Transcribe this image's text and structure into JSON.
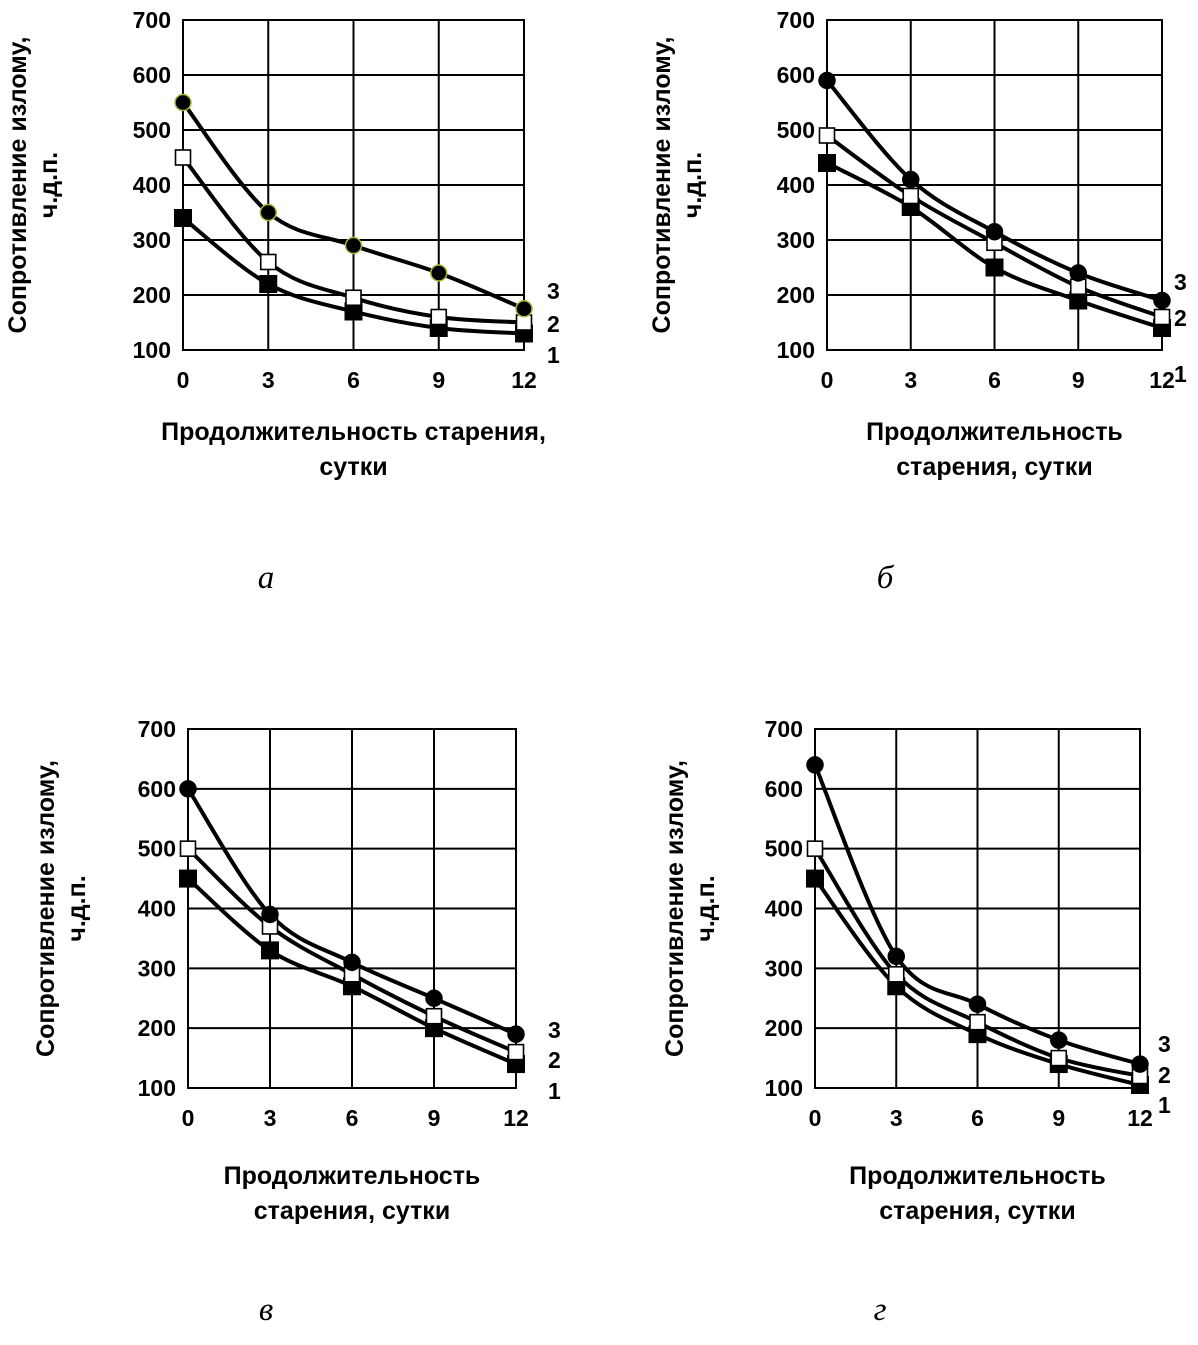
{
  "chart_data": [
    {
      "type": "line",
      "panel_label": "а",
      "xlabel": [
        "Продолжительность старения,",
        "сутки"
      ],
      "ylabel": [
        "Сопротивление излому,",
        "ч.д.п."
      ],
      "x": [
        0,
        3,
        6,
        9,
        12
      ],
      "xlim": [
        0,
        12
      ],
      "ylim": [
        100,
        700
      ],
      "yticks": [
        100,
        200,
        300,
        400,
        500,
        600,
        700
      ],
      "grid": true,
      "series": [
        {
          "name": "1",
          "marker": "filled-square",
          "values": [
            340,
            220,
            170,
            140,
            130
          ]
        },
        {
          "name": "2",
          "marker": "open-square",
          "values": [
            450,
            260,
            195,
            160,
            150
          ]
        },
        {
          "name": "3",
          "marker": "filled-circle",
          "values": [
            550,
            350,
            290,
            240,
            175
          ]
        }
      ]
    },
    {
      "type": "line",
      "panel_label": "б",
      "xlabel": [
        "Продолжительность",
        "старения, сутки"
      ],
      "ylabel": [
        "Сопротивление излому,",
        "ч.д.п."
      ],
      "x": [
        0,
        3,
        6,
        9,
        12
      ],
      "xlim": [
        0,
        12
      ],
      "ylim": [
        100,
        700
      ],
      "yticks": [
        100,
        200,
        300,
        400,
        500,
        600,
        700
      ],
      "grid": true,
      "series": [
        {
          "name": "1",
          "marker": "filled-square",
          "values": [
            440,
            360,
            250,
            190,
            140
          ]
        },
        {
          "name": "2",
          "marker": "open-square",
          "values": [
            490,
            380,
            295,
            215,
            160
          ]
        },
        {
          "name": "3",
          "marker": "filled-circle",
          "values": [
            590,
            410,
            315,
            240,
            190
          ]
        }
      ]
    },
    {
      "type": "line",
      "panel_label": "в",
      "xlabel": [
        "Продолжительность",
        "старения, сутки"
      ],
      "ylabel": [
        "Сопротивление излому,",
        "ч.д.п."
      ],
      "x": [
        0,
        3,
        6,
        9,
        12
      ],
      "xlim": [
        0,
        12
      ],
      "ylim": [
        100,
        700
      ],
      "yticks": [
        100,
        200,
        300,
        400,
        500,
        600,
        700
      ],
      "grid": true,
      "series": [
        {
          "name": "1",
          "marker": "filled-square",
          "values": [
            450,
            330,
            270,
            200,
            140
          ]
        },
        {
          "name": "2",
          "marker": "open-square",
          "values": [
            500,
            370,
            290,
            220,
            160
          ]
        },
        {
          "name": "3",
          "marker": "filled-circle",
          "values": [
            600,
            390,
            310,
            250,
            190
          ]
        }
      ]
    },
    {
      "type": "line",
      "panel_label": "г",
      "xlabel": [
        "Продолжительность",
        "старения, сутки"
      ],
      "ylabel": [
        "Сопротивление излому,",
        "ч.д.п."
      ],
      "x": [
        0,
        3,
        6,
        9,
        12
      ],
      "xlim": [
        0,
        12
      ],
      "ylim": [
        100,
        700
      ],
      "yticks": [
        100,
        200,
        300,
        400,
        500,
        600,
        700
      ],
      "grid": true,
      "series": [
        {
          "name": "1",
          "marker": "filled-square",
          "values": [
            450,
            270,
            190,
            140,
            105
          ]
        },
        {
          "name": "2",
          "marker": "open-square",
          "values": [
            500,
            290,
            210,
            150,
            120
          ]
        },
        {
          "name": "3",
          "marker": "filled-circle",
          "values": [
            640,
            320,
            240,
            180,
            140
          ]
        }
      ]
    }
  ]
}
